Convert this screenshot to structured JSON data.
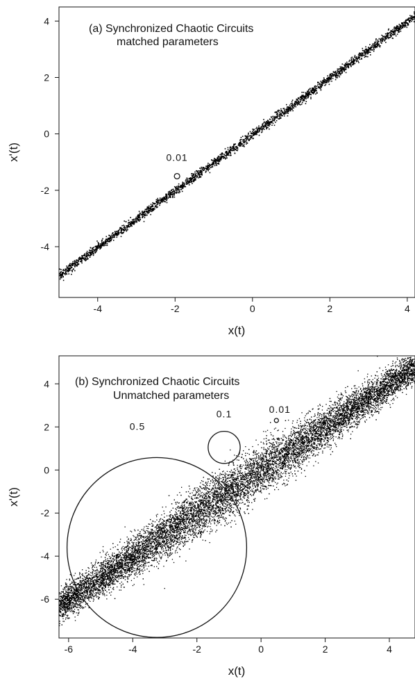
{
  "chart_data": [
    {
      "type": "scatter",
      "panel": "a",
      "title": "(a) Synchronized Chaotic Circuits",
      "subtitle": "matched parameters",
      "xlabel": "x(t)",
      "ylabel": "x'(t)",
      "xlim": [
        -5,
        4.2
      ],
      "ylim": [
        -5.8,
        4.5
      ],
      "xticks": [
        -4,
        -2,
        0,
        2,
        4
      ],
      "yticks": [
        -4,
        -2,
        0,
        2,
        4
      ],
      "grid": false,
      "series": [
        {
          "relation": "x'(t) ≈ x(t)",
          "x_range": [
            -5,
            4.2
          ],
          "spread": 0.08,
          "color": "#000000"
        }
      ],
      "circles": [
        {
          "label": "0.01",
          "cx": -1.95,
          "cy": -1.5,
          "r": 0.07
        }
      ]
    },
    {
      "type": "scatter",
      "panel": "b",
      "title": "(b) Synchronized Chaotic Circuits",
      "subtitle": "Unmatched parameters",
      "xlabel": "x(t)",
      "ylabel": "x'(t)",
      "xlim": [
        -6.3,
        4.8
      ],
      "ylim": [
        -7.8,
        5.3
      ],
      "xticks": [
        -6,
        -4,
        -2,
        0,
        2,
        4
      ],
      "yticks": [
        -6,
        -4,
        -2,
        0,
        2,
        4
      ],
      "grid": false,
      "series": [
        {
          "relation": "x'(t) ≈ x(t)",
          "x_range": [
            -6.3,
            4.8
          ],
          "spread": 0.55,
          "color": "#000000"
        }
      ],
      "circles": [
        {
          "label": "0.5",
          "cx": -3.25,
          "cy": -3.6,
          "r": 2.8
        },
        {
          "label": "0.1",
          "cx": -1.15,
          "cy": 1.05,
          "r": 0.5
        },
        {
          "label": "0.01",
          "cx": 0.48,
          "cy": 2.3,
          "r": 0.06
        }
      ]
    }
  ]
}
